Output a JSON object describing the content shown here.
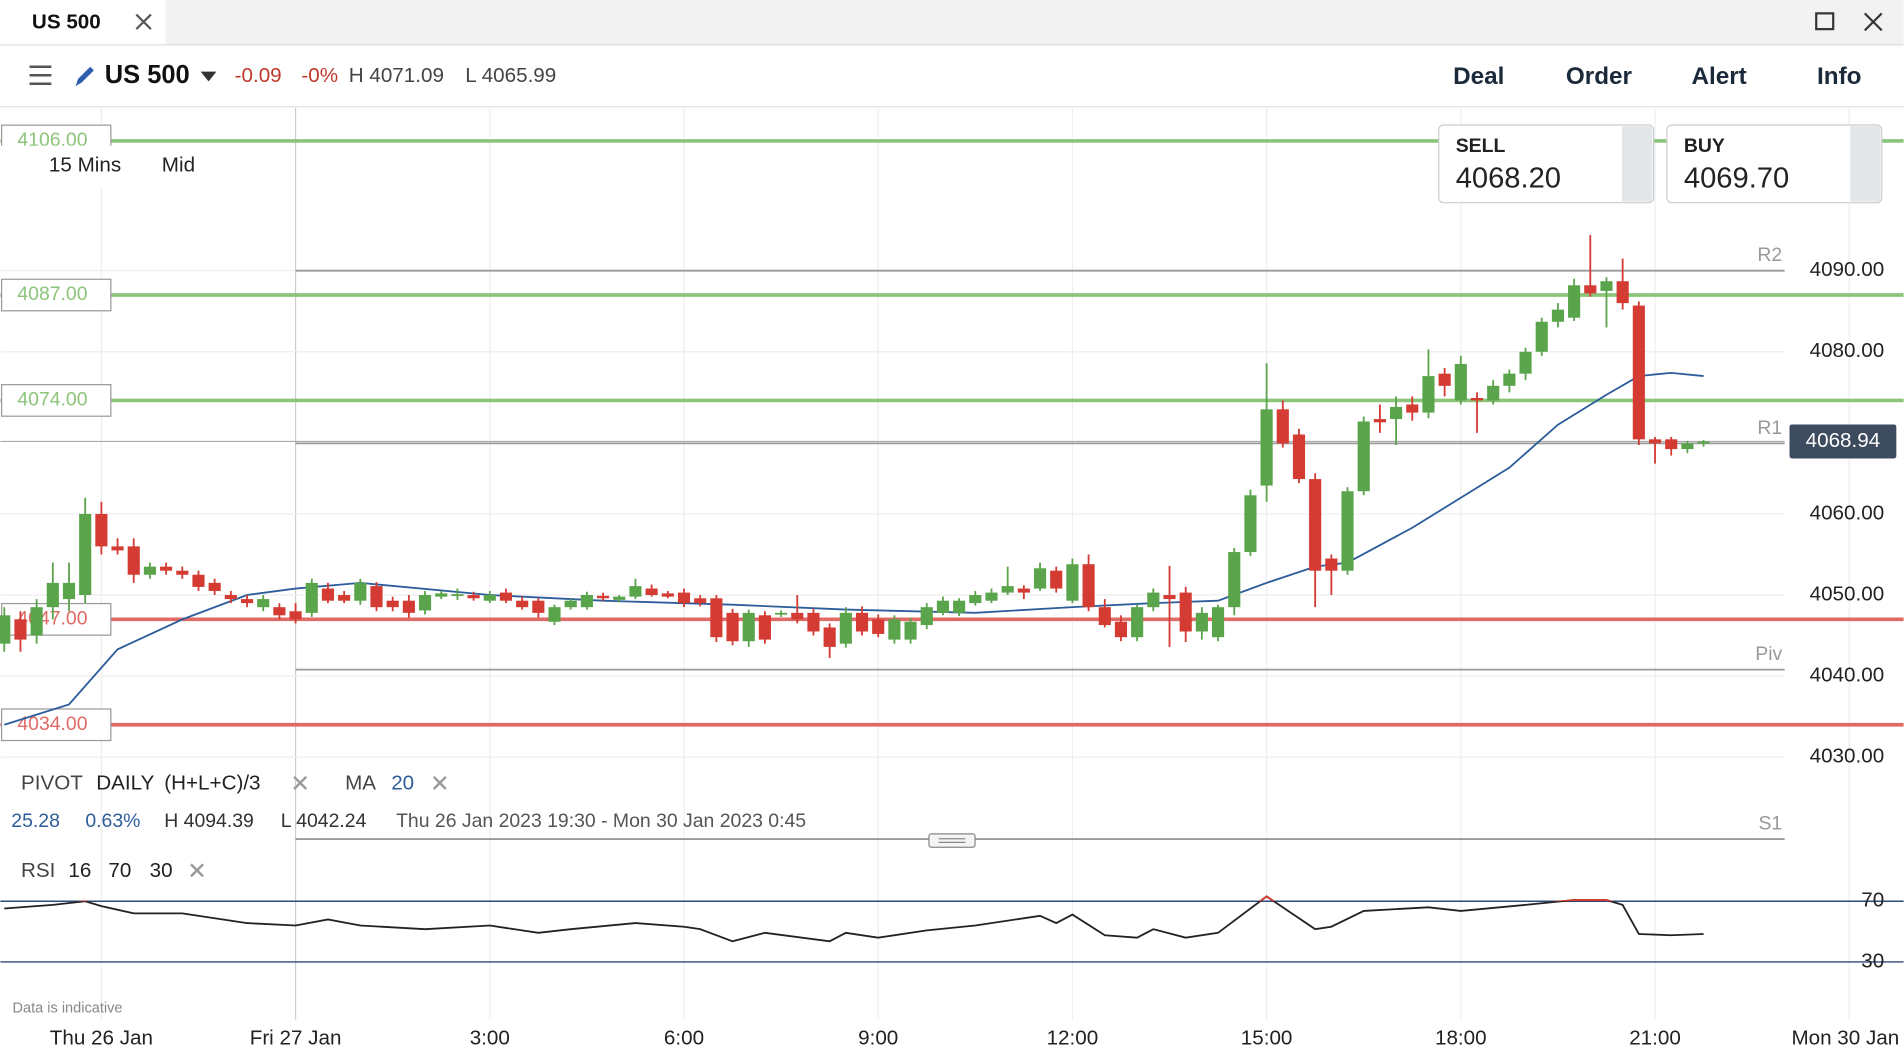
{
  "tab": {
    "title": "US 500"
  },
  "header": {
    "market": "US 500",
    "change": "-0.09",
    "change_pct": "-0%",
    "high": "H 4071.09",
    "low": "L 4065.99",
    "nav": [
      "Deal",
      "Order",
      "Alert",
      "Info"
    ]
  },
  "chart_settings": {
    "timeframe": "15 Mins",
    "price_type": "Mid"
  },
  "quote": {
    "sell_label": "SELL",
    "sell": "4068.20",
    "buy_label": "BUY",
    "buy": "4069.70"
  },
  "indicators": {
    "pivot": [
      "PIVOT",
      "DAILY",
      "(H+L+C)/3"
    ],
    "ma": [
      "MA",
      "20"
    ],
    "rsi": [
      "RSI",
      "16",
      "70",
      "30"
    ]
  },
  "stats": {
    "change": "25.28",
    "change_pct": "0.63%",
    "high": "H 4094.39",
    "low": "L 4042.24",
    "range": "Thu 26 Jan 2023 19:30 - Mon 30 Jan 2023 0:45"
  },
  "footnote": "Data is indicative",
  "chart_data": [
    {
      "type": "candlestick",
      "up_color": "#5aa54c",
      "down_color": "#d43c33",
      "x": [
        -4.5,
        -4.25,
        -4,
        -3.75,
        -3.5,
        -3.25,
        -3,
        -2.75,
        -2.5,
        -2.25,
        -2,
        -1.75,
        -1.5,
        -1.25,
        -1,
        -0.75,
        -0.5,
        -0.25,
        0,
        0.25,
        0.5,
        0.75,
        1,
        1.25,
        1.5,
        1.75,
        2,
        2.25,
        2.5,
        2.75,
        3,
        3.25,
        3.5,
        3.75,
        4,
        4.25,
        4.5,
        4.75,
        5,
        5.25,
        5.5,
        5.75,
        6,
        6.25,
        6.5,
        6.75,
        7,
        7.25,
        7.5,
        7.75,
        8,
        8.25,
        8.5,
        8.75,
        9,
        9.25,
        9.5,
        9.75,
        10,
        10.25,
        10.5,
        10.75,
        11,
        11.25,
        11.5,
        11.75,
        12,
        12.25,
        12.5,
        12.75,
        13,
        13.25,
        13.5,
        13.75,
        14,
        14.25,
        14.5,
        14.75,
        15,
        15.25,
        15.5,
        15.75,
        16,
        16.25,
        16.5,
        16.75,
        17,
        17.25,
        17.5,
        17.75,
        18,
        18.25,
        18.5,
        18.75,
        19,
        19.25,
        19.5,
        19.75,
        20,
        20.25,
        20.5,
        20.75,
        21,
        21.25,
        21.5,
        21.75
      ],
      "candles": [
        [
          4044,
          4048.5,
          4043,
          4047.5
        ],
        [
          4047,
          4048,
          4043,
          4044.5
        ],
        [
          4045,
          4049.5,
          4044,
          4048.5
        ],
        [
          4048.5,
          4054,
          4047,
          4051.5
        ],
        [
          4049.5,
          4054,
          4048,
          4051.5
        ],
        [
          4050,
          4062,
          4049,
          4060
        ],
        [
          4060,
          4061.5,
          4055,
          4056
        ],
        [
          4056,
          4057,
          4055,
          4055.5
        ],
        [
          4056,
          4057,
          4051.5,
          4052.5
        ],
        [
          4052.5,
          4054,
          4052,
          4053.5
        ],
        [
          4053.5,
          4054,
          4052.5,
          4053
        ],
        [
          4053,
          4053.5,
          4052,
          4052.5
        ],
        [
          4052.5,
          4053,
          4050.5,
          4051
        ],
        [
          4051.5,
          4052,
          4050,
          4050.5
        ],
        [
          4050,
          4050.5,
          4049,
          4049.5
        ],
        [
          4049.5,
          4050,
          4048.5,
          4049
        ],
        [
          4048.5,
          4050,
          4048,
          4049.5
        ],
        [
          4048.5,
          4049,
          4047,
          4047.5
        ],
        [
          4048,
          4049,
          4046.5,
          4047
        ],
        [
          4047.8,
          4052,
          4047.3,
          4051.5
        ],
        [
          4050.8,
          4051.5,
          4049,
          4049.3
        ],
        [
          4050,
          4050.5,
          4049,
          4049.3
        ],
        [
          4049.3,
          4052,
          4048.8,
          4051.5
        ],
        [
          4051.1,
          4051.6,
          4048,
          4048.5
        ],
        [
          4049.3,
          4049.8,
          4048,
          4048.5
        ],
        [
          4049.3,
          4050,
          4047.2,
          4047.8
        ],
        [
          4048.1,
          4050.5,
          4047.6,
          4050
        ],
        [
          4049.8,
          4050.5,
          4049.5,
          4050.2
        ],
        [
          4050,
          4050.8,
          4049.4,
          4050.1
        ],
        [
          4050,
          4050.4,
          4049.3,
          4049.6
        ],
        [
          4049.3,
          4050.5,
          4049,
          4050
        ],
        [
          4050.3,
          4050.8,
          4049,
          4049.3
        ],
        [
          4049.3,
          4049.8,
          4048.2,
          4048.5
        ],
        [
          4049.3,
          4049.6,
          4047.2,
          4047.8
        ],
        [
          4046.7,
          4048.8,
          4046.3,
          4048.5
        ],
        [
          4048.5,
          4049.5,
          4048.2,
          4049.3
        ],
        [
          4048.5,
          4050.4,
          4048.2,
          4050
        ],
        [
          4049.9,
          4050.3,
          4049.3,
          4049.6
        ],
        [
          4049.4,
          4050,
          4049.1,
          4049.8
        ],
        [
          4049.8,
          4052,
          4049.5,
          4051.1
        ],
        [
          4050.8,
          4051.3,
          4049.8,
          4050
        ],
        [
          4050.2,
          4050.5,
          4049.6,
          4049.8
        ],
        [
          4050.3,
          4050.8,
          4048.5,
          4049
        ],
        [
          4049.6,
          4050,
          4048.6,
          4049
        ],
        [
          4049.6,
          4050,
          4044.2,
          4044.8
        ],
        [
          4047.8,
          4048.3,
          4043.8,
          4044.3
        ],
        [
          4044.3,
          4048.2,
          4043.6,
          4047.8
        ],
        [
          4047.5,
          4048,
          4044,
          4044.5
        ],
        [
          4047.6,
          4048.1,
          4047.3,
          4047.8
        ],
        [
          4047.8,
          4050,
          4046.5,
          4047
        ],
        [
          4047.8,
          4048.3,
          4045,
          4045.5
        ],
        [
          4046,
          4046.5,
          4042.24,
          4043.6
        ],
        [
          4044,
          4048.5,
          4043.5,
          4047.8
        ],
        [
          4047.8,
          4048.6,
          4045,
          4045.5
        ],
        [
          4047,
          4047.6,
          4044.8,
          4045.2
        ],
        [
          4044.5,
          4047.5,
          4044,
          4047
        ],
        [
          4044.5,
          4047.2,
          4044,
          4046.7
        ],
        [
          4046.3,
          4049,
          4045.8,
          4048.5
        ],
        [
          4047.8,
          4049.8,
          4047.5,
          4049.3
        ],
        [
          4047.8,
          4049.6,
          4047.4,
          4049.3
        ],
        [
          4049,
          4050.5,
          4048.7,
          4050
        ],
        [
          4049.3,
          4050.8,
          4049,
          4050.3
        ],
        [
          4050.3,
          4053.5,
          4050,
          4051.1
        ],
        [
          4050.8,
          4051.2,
          4049.5,
          4050.3
        ],
        [
          4050.8,
          4054,
          4050.5,
          4053.3
        ],
        [
          4053,
          4053.5,
          4050.3,
          4050.8
        ],
        [
          4049.3,
          4054.5,
          4049,
          4053.8
        ],
        [
          4053.8,
          4055,
          4048,
          4048.5
        ],
        [
          4048.5,
          4049.5,
          4046,
          4046.3
        ],
        [
          4046.7,
          4047.5,
          4044.3,
          4044.8
        ],
        [
          4044.8,
          4048.8,
          4044.3,
          4048.5
        ],
        [
          4048.5,
          4050.8,
          4048,
          4050.3
        ],
        [
          4050,
          4053.6,
          4043.6,
          4049.5
        ],
        [
          4050.3,
          4051,
          4044.2,
          4045.5
        ],
        [
          4045.5,
          4048.5,
          4044.5,
          4047.8
        ],
        [
          4044.8,
          4048.8,
          4044.3,
          4048.5
        ],
        [
          4048.5,
          4055.8,
          4047.5,
          4055.3
        ],
        [
          4055.3,
          4063,
          4054.8,
          4062.3
        ],
        [
          4063.5,
          4078.6,
          4061.5,
          4072.9
        ],
        [
          4072.9,
          4074,
          4068.2,
          4068.7
        ],
        [
          4069.8,
          4070.5,
          4063.8,
          4064.3
        ],
        [
          4064.3,
          4065,
          4048.5,
          4053
        ],
        [
          4054.5,
          4055,
          4050,
          4053
        ],
        [
          4053,
          4063.3,
          4052.5,
          4062.8
        ],
        [
          4062.8,
          4072,
          4062.3,
          4071.4
        ],
        [
          4071.7,
          4073.5,
          4070,
          4071.3
        ],
        [
          4071.7,
          4074.5,
          4068.5,
          4073.2
        ],
        [
          4073.5,
          4074.5,
          4071.5,
          4072.5
        ],
        [
          4072.5,
          4080.3,
          4071.8,
          4077
        ],
        [
          4077.3,
          4078,
          4074.5,
          4075.8
        ],
        [
          4074,
          4079.5,
          4073.5,
          4078.5
        ],
        [
          4074.3,
          4075,
          4070,
          4074
        ],
        [
          4074,
          4076.5,
          4073.5,
          4075.8
        ],
        [
          4075.8,
          4077.8,
          4075,
          4077.3
        ],
        [
          4077.3,
          4080.5,
          4076.5,
          4080
        ],
        [
          4080,
          4084.2,
          4079.5,
          4083.7
        ],
        [
          4083.7,
          4086,
          4083,
          4085.2
        ],
        [
          4084.2,
          4089,
          4083.8,
          4088.2
        ],
        [
          4088.2,
          4094.39,
          4086.8,
          4087.2
        ],
        [
          4087.5,
          4089.2,
          4083,
          4088.7
        ],
        [
          4088.7,
          4091.5,
          4085.2,
          4086
        ],
        [
          4085.7,
          4086.2,
          4068.5,
          4069.2
        ],
        [
          4069.2,
          4069.5,
          4066.2,
          4068.7
        ],
        [
          4069.2,
          4069.5,
          4067.2,
          4068
        ],
        [
          4068,
          4069,
          4067.5,
          4068.7
        ],
        [
          4068.7,
          4069.1,
          4068.3,
          4068.94
        ]
      ],
      "lines": [
        {
          "color": "#2d5d9a",
          "x": [
            -4.5,
            -3.5,
            -2.75,
            -1.75,
            -0.75,
            0,
            1,
            3,
            4.75,
            6.75,
            8.5,
            10.5,
            12,
            13.25,
            14.25,
            15,
            15.75,
            16.25,
            17.25,
            18,
            18.75,
            19.5,
            20.25,
            20.75,
            21.25,
            21.75
          ],
          "values": [
            4034,
            4036.5,
            4043.3,
            4047,
            4050,
            4050.8,
            4051.5,
            4050,
            4049.3,
            4048.8,
            4048.2,
            4047.8,
            4048.5,
            4049,
            4049.3,
            4051.5,
            4053.5,
            4054,
            4058.3,
            4062,
            4065.7,
            4071,
            4074.7,
            4077,
            4077.4,
            4077
          ]
        }
      ],
      "levels": [
        {
          "value": 4106,
          "label": "4106.00",
          "color": "#8cc47a"
        },
        {
          "value": 4087,
          "label": "4087.00",
          "color": "#8cc47a"
        },
        {
          "value": 4074,
          "label": "4074.00",
          "color": "#8cc47a"
        },
        {
          "value": 4047,
          "label": "4047.00",
          "color": "#e06a66"
        },
        {
          "value": 4034,
          "label": "4034.00",
          "color": "#e06a66"
        }
      ],
      "pivots": [
        {
          "label": "R2",
          "value": 4090
        },
        {
          "label": "R1",
          "value": 4068.7
        },
        {
          "label": "Piv",
          "value": 4040.8
        },
        {
          "label": "S1",
          "value": 4019.9
        }
      ],
      "last_price": {
        "value": 4068.94,
        "label": "4068.94"
      },
      "xlim": [
        -4.56,
        24.84
      ],
      "xticks": [
        {
          "value": -3,
          "label": "Thu 26 Jan"
        },
        {
          "value": 0,
          "label": "Fri 27 Jan"
        },
        {
          "value": 3,
          "label": "3:00"
        },
        {
          "value": 6,
          "label": "6:00"
        },
        {
          "value": 9,
          "label": "9:00"
        },
        {
          "value": 12,
          "label": "12:00"
        },
        {
          "value": 15,
          "label": "15:00"
        },
        {
          "value": 18,
          "label": "18:00"
        },
        {
          "value": 21,
          "label": "21:00"
        },
        {
          "value": 24,
          "label": "Mon 30 Jan"
        }
      ],
      "ylim": [
        4029,
        4110
      ],
      "yticks": [
        {
          "value": 4030,
          "label": "4030.00"
        },
        {
          "value": 4040,
          "label": "4040.00"
        },
        {
          "value": 4050,
          "label": "4050.00"
        },
        {
          "value": 4060,
          "label": "4060.00"
        },
        {
          "value": 4080,
          "label": "4080.00"
        },
        {
          "value": 4090,
          "label": "4090.00"
        }
      ],
      "grid": true
    },
    {
      "type": "line",
      "color": "#222222",
      "overbought_color": "#d43c33",
      "band_color": "#2d4a7a",
      "x": [
        -4.5,
        -3.75,
        -3.25,
        -3,
        -2.5,
        -1.75,
        -0.75,
        0,
        0.5,
        1,
        2,
        3,
        3.75,
        4.25,
        5.25,
        6,
        6.25,
        6.75,
        7.25,
        8.25,
        8.5,
        9,
        9.75,
        10.5,
        11.5,
        11.75,
        12,
        12.5,
        13,
        13.25,
        13.75,
        14.25,
        15,
        15.75,
        16,
        16.5,
        17.5,
        18,
        19,
        19.75,
        20.25,
        20.5,
        20.75,
        21.25,
        21.75
      ],
      "values": [
        65.2,
        67.6,
        70,
        66.8,
        62,
        62,
        55.6,
        54,
        58,
        54,
        51.6,
        54,
        49.2,
        51.6,
        55.6,
        53.2,
        51.6,
        43.6,
        49.2,
        43.6,
        49.2,
        46,
        50.8,
        54,
        60.4,
        55.6,
        61.2,
        47.6,
        46,
        51.6,
        46,
        49.2,
        73.2,
        51.6,
        53.2,
        63.6,
        66,
        63.6,
        67.6,
        70.8,
        70.8,
        67.6,
        48.4,
        47.6,
        48.4
      ],
      "ylim": [
        0,
        100
      ],
      "yticks": [
        30,
        70
      ]
    }
  ]
}
